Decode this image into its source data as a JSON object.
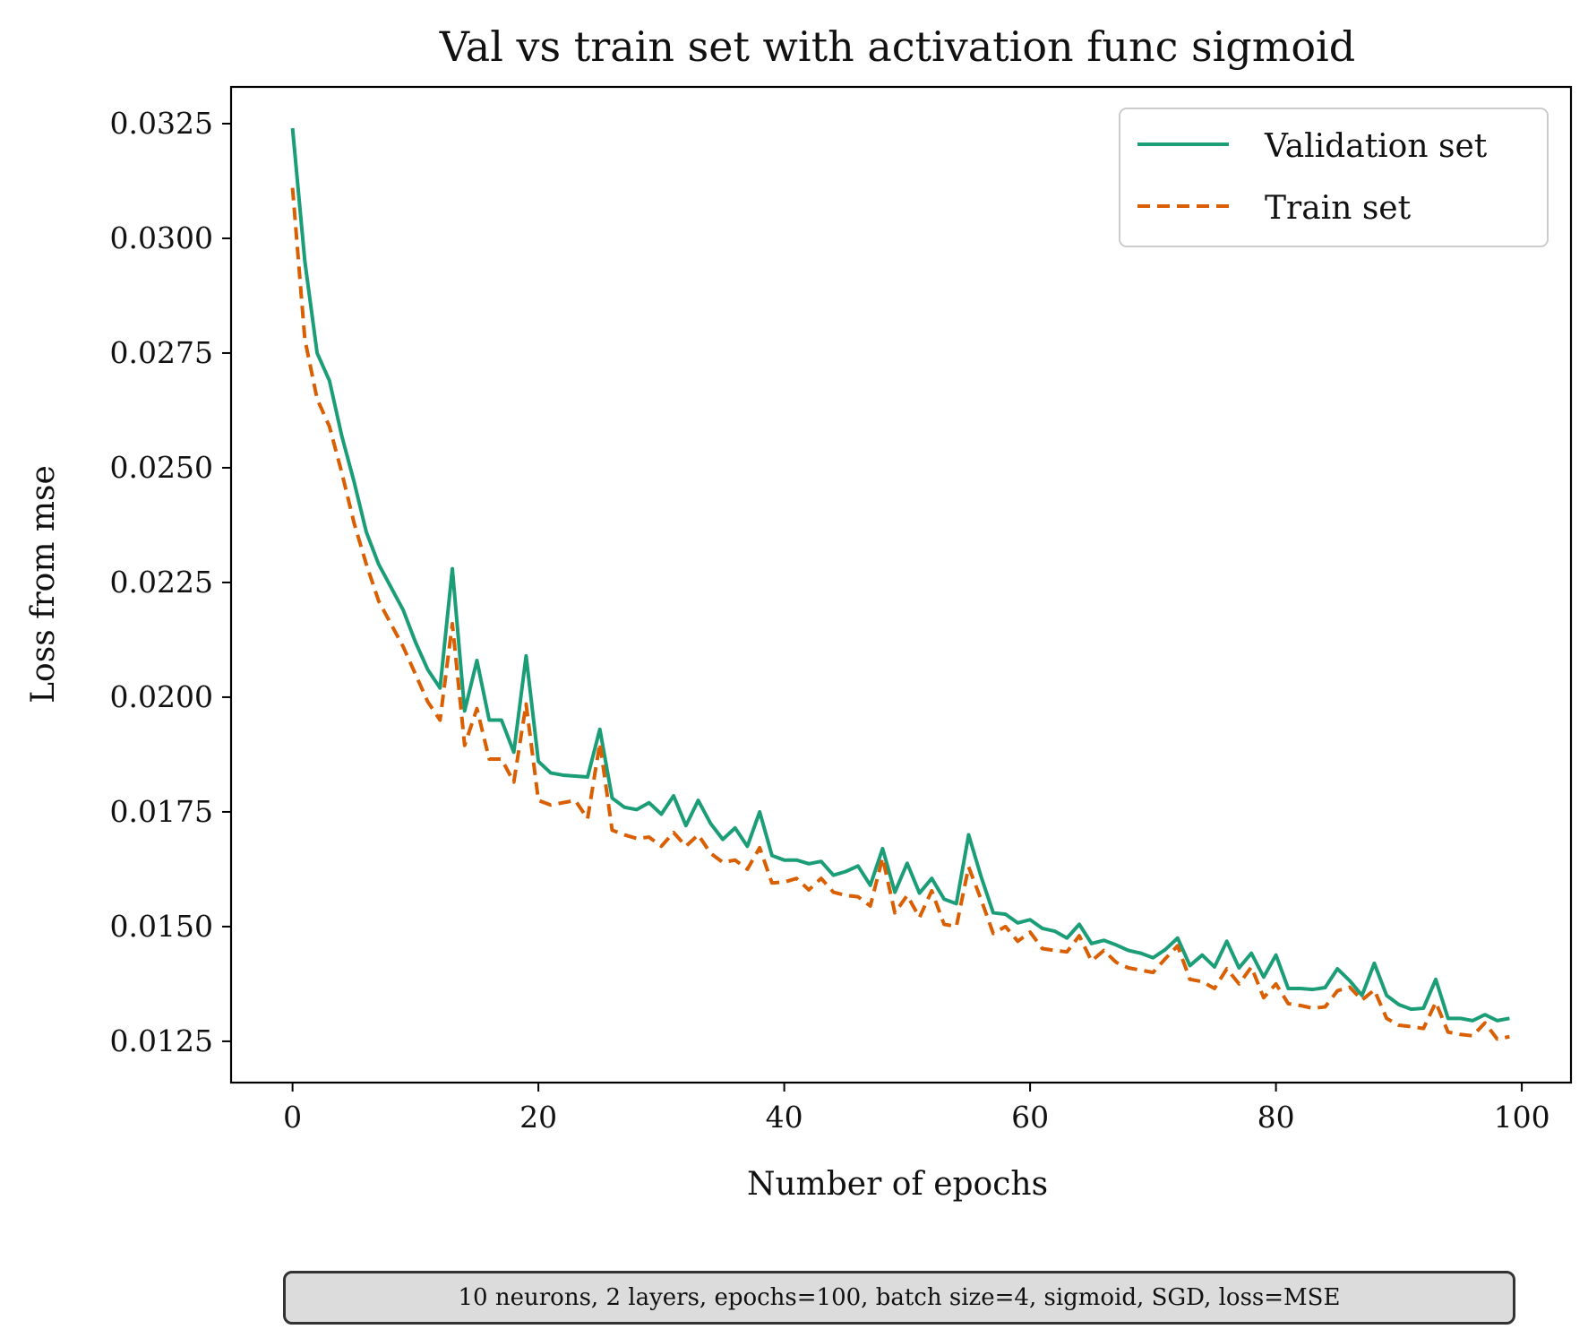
{
  "chart_data": {
    "type": "line",
    "title": "Val vs train set with activation func sigmoid",
    "xlabel": "Number of epochs",
    "ylabel": "Loss from mse",
    "xlim": [
      -5,
      104
    ],
    "ylim": [
      0.0116,
      0.0333
    ],
    "xticks": [
      0,
      20,
      40,
      60,
      80,
      100
    ],
    "xtick_labels": [
      "0",
      "20",
      "40",
      "60",
      "80",
      "100"
    ],
    "yticks": [
      0.0125,
      0.015,
      0.0175,
      0.02,
      0.0225,
      0.025,
      0.0275,
      0.03,
      0.0325
    ],
    "ytick_labels": [
      "0.0125",
      "0.0150",
      "0.0175",
      "0.0200",
      "0.0225",
      "0.0250",
      "0.0275",
      "0.0300",
      "0.0325"
    ],
    "grid": false,
    "legend_position": "top-right",
    "series": [
      {
        "name": "Validation set",
        "color": "#1b9e77",
        "style": "solid",
        "values": [
          0.0324,
          0.0295,
          0.0275,
          0.0269,
          0.0257,
          0.0247,
          0.0236,
          0.0229,
          0.0224,
          0.0219,
          0.0212,
          0.0206,
          0.0202,
          0.0228,
          0.0197,
          0.0208,
          0.0195,
          0.0195,
          0.0188,
          0.0209,
          0.0186,
          0.01835,
          0.0183,
          0.01828,
          0.01826,
          0.0193,
          0.0178,
          0.0176,
          0.01755,
          0.0177,
          0.01745,
          0.01785,
          0.0172,
          0.01775,
          0.01725,
          0.0169,
          0.01715,
          0.01675,
          0.0175,
          0.01655,
          0.01645,
          0.01645,
          0.01637,
          0.01642,
          0.01612,
          0.0162,
          0.01632,
          0.0159,
          0.0167,
          0.01575,
          0.01638,
          0.01573,
          0.01605,
          0.0156,
          0.0155,
          0.017,
          0.0161,
          0.0153,
          0.01527,
          0.01508,
          0.01515,
          0.01496,
          0.0149,
          0.01475,
          0.01505,
          0.01463,
          0.0147,
          0.0146,
          0.01448,
          0.01442,
          0.01432,
          0.0145,
          0.01475,
          0.01415,
          0.01438,
          0.01412,
          0.01468,
          0.0141,
          0.01442,
          0.0139,
          0.01438,
          0.01365,
          0.01365,
          0.01363,
          0.01367,
          0.01408,
          0.01382,
          0.0135,
          0.0142,
          0.0135,
          0.0133,
          0.0132,
          0.01322,
          0.01385,
          0.013,
          0.013,
          0.01295,
          0.01308,
          0.01295,
          0.013
        ]
      },
      {
        "name": "Train set",
        "color": "#d95f02",
        "style": "dashed",
        "values": [
          0.0311,
          0.0278,
          0.0265,
          0.0259,
          0.0249,
          0.0238,
          0.0229,
          0.0221,
          0.0216,
          0.0211,
          0.0205,
          0.0199,
          0.0195,
          0.0216,
          0.01895,
          0.01975,
          0.01865,
          0.01865,
          0.01815,
          0.01985,
          0.01775,
          0.01765,
          0.0177,
          0.01775,
          0.01735,
          0.019,
          0.0171,
          0.017,
          0.01692,
          0.01695,
          0.01675,
          0.01705,
          0.01675,
          0.017,
          0.0166,
          0.0164,
          0.01645,
          0.01625,
          0.01672,
          0.01595,
          0.01597,
          0.01605,
          0.0158,
          0.01605,
          0.01575,
          0.01568,
          0.01565,
          0.01545,
          0.0165,
          0.0153,
          0.01568,
          0.0152,
          0.01578,
          0.01505,
          0.015,
          0.0163,
          0.0156,
          0.01485,
          0.015,
          0.01468,
          0.01488,
          0.01452,
          0.01448,
          0.01445,
          0.0148,
          0.01425,
          0.01448,
          0.01422,
          0.0141,
          0.01405,
          0.014,
          0.0143,
          0.01458,
          0.01385,
          0.0138,
          0.01365,
          0.01408,
          0.01375,
          0.01412,
          0.01345,
          0.01375,
          0.01332,
          0.01328,
          0.01322,
          0.01325,
          0.0136,
          0.01368,
          0.0134,
          0.01362,
          0.013,
          0.01285,
          0.01282,
          0.01278,
          0.01335,
          0.0127,
          0.01265,
          0.01262,
          0.0129,
          0.01255,
          0.0126
        ]
      }
    ]
  },
  "caption": "10 neurons, 2 layers, epochs=100, batch size=4, sigmoid, SGD, loss=MSE"
}
